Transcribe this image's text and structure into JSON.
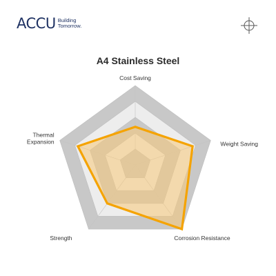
{
  "brand": {
    "name": "ACCU",
    "tagline_1": "Building",
    "tagline_2": "Tomorrow."
  },
  "header": {
    "icon": "target-crosshair-icon"
  },
  "chart_data": {
    "type": "radar",
    "title": "A4 Stainless Steel",
    "axes": [
      "Cost Saving",
      "Weight Saving",
      "Corrosion Resistance",
      "Strength",
      "Thermal Expansion"
    ],
    "scale_levels": 5,
    "max": 5,
    "series": [
      {
        "values": [
          2.4,
          3.8,
          5,
          3.0,
          3.8
        ]
      }
    ],
    "colors": {
      "series_line": "#f5a300",
      "series_fill": "#f8c878",
      "ring_dark": "#c8c8c8",
      "ring_light": "#ededed"
    }
  }
}
